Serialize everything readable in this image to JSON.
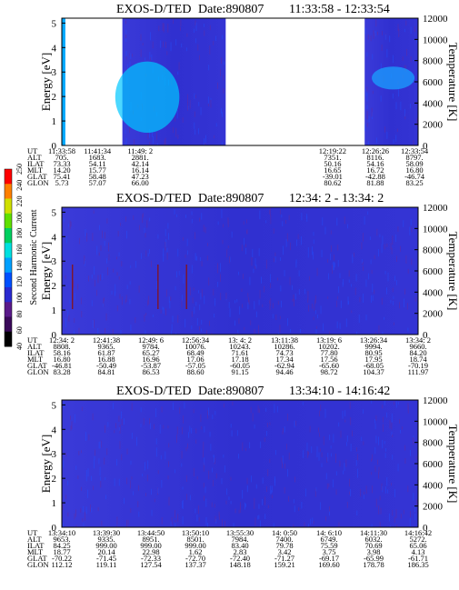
{
  "chart_data": [
    {
      "type": "heatmap",
      "title": "EXOS-D/TED",
      "date_label": "Date:890807",
      "time_range": "11:33:58 - 12:33:54",
      "ylabel": "Energy [eV]",
      "y2label": "Temperature [K]",
      "ylim": [
        0,
        5.2
      ],
      "yticks": [
        "0",
        "1",
        "2",
        "3",
        "4",
        "5"
      ],
      "y2ticks": [
        "0",
        "2000",
        "4000",
        "6000",
        "8000",
        "10000",
        "12000"
      ],
      "coverage": [
        [
          0.0,
          0.01,
          "cyan"
        ],
        [
          0.17,
          0.46,
          "blue"
        ],
        [
          0.85,
          1.0,
          "blue"
        ]
      ],
      "rows": [
        {
          "label": "UT",
          "values": [
            "11:33:58",
            "11:41:34",
            "11:49: 2",
            "12:19:22",
            "12:26:26",
            "12:33:54"
          ]
        },
        {
          "label": "ALT",
          "values": [
            "705.",
            "1683.",
            "2881.",
            "7351.",
            "8116.",
            "8797."
          ]
        },
        {
          "label": "ILAT",
          "values": [
            "73.33",
            "54.11",
            "42.14",
            "50.16",
            "54.16",
            "58.09"
          ]
        },
        {
          "label": "MLT",
          "values": [
            "14.20",
            "15.77",
            "16.14",
            "16.65",
            "16.72",
            "16.80"
          ]
        },
        {
          "label": "GLAT",
          "values": [
            "75.41",
            "58.48",
            "47.23",
            "-39.01",
            "-42.88",
            "-46.74"
          ]
        },
        {
          "label": "GLON",
          "values": [
            "5.73",
            "57.07",
            "66.00",
            "80.62",
            "81.88",
            "83.25"
          ]
        }
      ]
    },
    {
      "type": "heatmap",
      "title": "EXOS-D/TED",
      "date_label": "Date:890807",
      "time_range": "12:34: 2 - 13:34: 2",
      "ylabel": "Energy [eV]",
      "y2label": "Temperature [K]",
      "ylim": [
        0,
        5.2
      ],
      "yticks": [
        "0",
        "1",
        "2",
        "3",
        "4",
        "5"
      ],
      "y2ticks": [
        "0",
        "2000",
        "4000",
        "6000",
        "8000",
        "10000",
        "12000"
      ],
      "coverage": [
        [
          0.0,
          1.0,
          "blue"
        ]
      ],
      "rows": [
        {
          "label": "UT",
          "values": [
            "12:34: 2",
            "12:41:38",
            "12:49: 6",
            "12:56:34",
            "13: 4: 2",
            "13:11:38",
            "13:19: 6",
            "13:26:34",
            "13:34: 2"
          ]
        },
        {
          "label": "ALT",
          "values": [
            "8808.",
            "9365.",
            "9784.",
            "10076.",
            "10243.",
            "10286.",
            "10202.",
            "9994.",
            "9660."
          ]
        },
        {
          "label": "ILAT",
          "values": [
            "58.16",
            "61.87",
            "65.27",
            "68.49",
            "71.61",
            "74.73",
            "77.80",
            "80.95",
            "84.20"
          ]
        },
        {
          "label": "MLT",
          "values": [
            "16.80",
            "16.88",
            "16.96",
            "17.06",
            "17.18",
            "17.34",
            "17.56",
            "17.95",
            "18.74"
          ]
        },
        {
          "label": "GLAT",
          "values": [
            "-46.81",
            "-50.49",
            "-53.87",
            "-57.05",
            "-60.05",
            "-62.94",
            "-65.60",
            "-68.05",
            "-70.19"
          ]
        },
        {
          "label": "GLON",
          "values": [
            "83.28",
            "84.81",
            "86.53",
            "88.60",
            "91.15",
            "94.46",
            "98.72",
            "104.37",
            "111.97"
          ]
        }
      ]
    },
    {
      "type": "heatmap",
      "title": "EXOS-D/TED",
      "date_label": "Date:890807",
      "time_range": "13:34:10 - 14:16:42",
      "ylabel": "Energy [eV]",
      "y2label": "Temperature [K]",
      "ylim": [
        0,
        5.2
      ],
      "yticks": [
        "0",
        "1",
        "2",
        "3",
        "4",
        "5"
      ],
      "y2ticks": [
        "0",
        "2000",
        "4000",
        "6000",
        "8000",
        "10000",
        "12000"
      ],
      "coverage": [
        [
          0.0,
          1.0,
          "blue"
        ]
      ],
      "rows": [
        {
          "label": "UT",
          "values": [
            "13:34:10",
            "13:39:30",
            "13:44:50",
            "13:50:10",
            "13:55:30",
            "14: 0:50",
            "14: 6:10",
            "14:11:30",
            "14:16:42"
          ]
        },
        {
          "label": "ALT",
          "values": [
            "9653.",
            "9335.",
            "8951.",
            "8501.",
            "7984.",
            "7400.",
            "6749.",
            "6032.",
            "5272."
          ]
        },
        {
          "label": "ILAT",
          "values": [
            "84.25",
            "999.00",
            "999.00",
            "999.00",
            "83.40",
            "79.78",
            "75.59",
            "70.69",
            "65.06"
          ]
        },
        {
          "label": "MLT",
          "values": [
            "18.77",
            "20.14",
            "22.98",
            "1.62",
            "2.83",
            "3.42",
            "3.75",
            "3.98",
            "4.13"
          ]
        },
        {
          "label": "GLAT",
          "values": [
            "-70.22",
            "-71.45",
            "-72.33",
            "-72.70",
            "-72.40",
            "-71.27",
            "-69.17",
            "-65.99",
            "-61.71"
          ]
        },
        {
          "label": "GLON",
          "values": [
            "112.12",
            "119.11",
            "127.54",
            "137.37",
            "148.18",
            "159.21",
            "169.60",
            "178.78",
            "186.35"
          ]
        }
      ]
    }
  ],
  "colorbar": {
    "label": "Second Harmonic Current",
    "ticks": [
      "40",
      "60",
      "80",
      "100",
      "120",
      "140",
      "160",
      "180",
      "200",
      "220",
      "240",
      "250"
    ],
    "colors": [
      "#000000",
      "#3a0a5a",
      "#5a1a8a",
      "#2a2ad0",
      "#0050ff",
      "#00a0ff",
      "#00e0e0",
      "#00d060",
      "#60e000",
      "#d0e000",
      "#ff8000",
      "#ff0000"
    ]
  }
}
